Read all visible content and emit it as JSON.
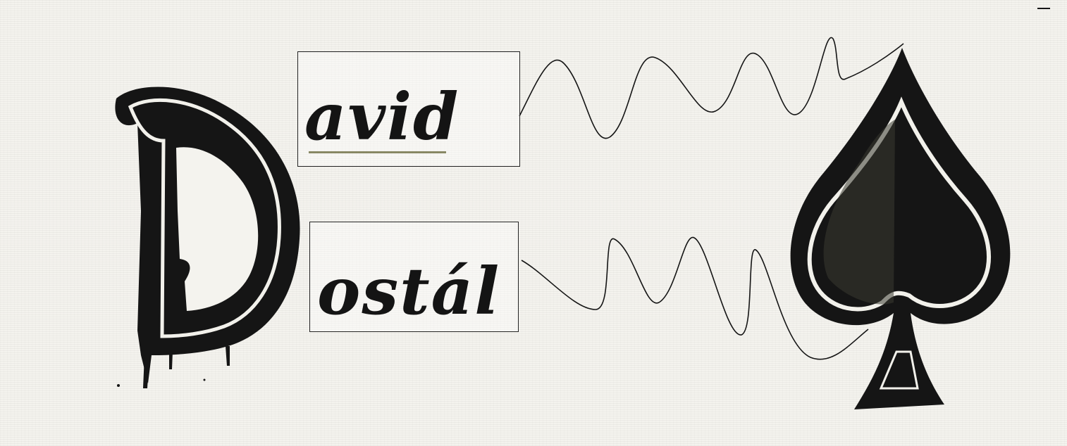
{
  "logo": {
    "first_name_rest": "avid",
    "last_name_rest": "ostál",
    "initial_glyph": "D",
    "symbol": "spade-icon",
    "colors": {
      "ink": "#141414",
      "paper": "#f4f3ee"
    }
  }
}
